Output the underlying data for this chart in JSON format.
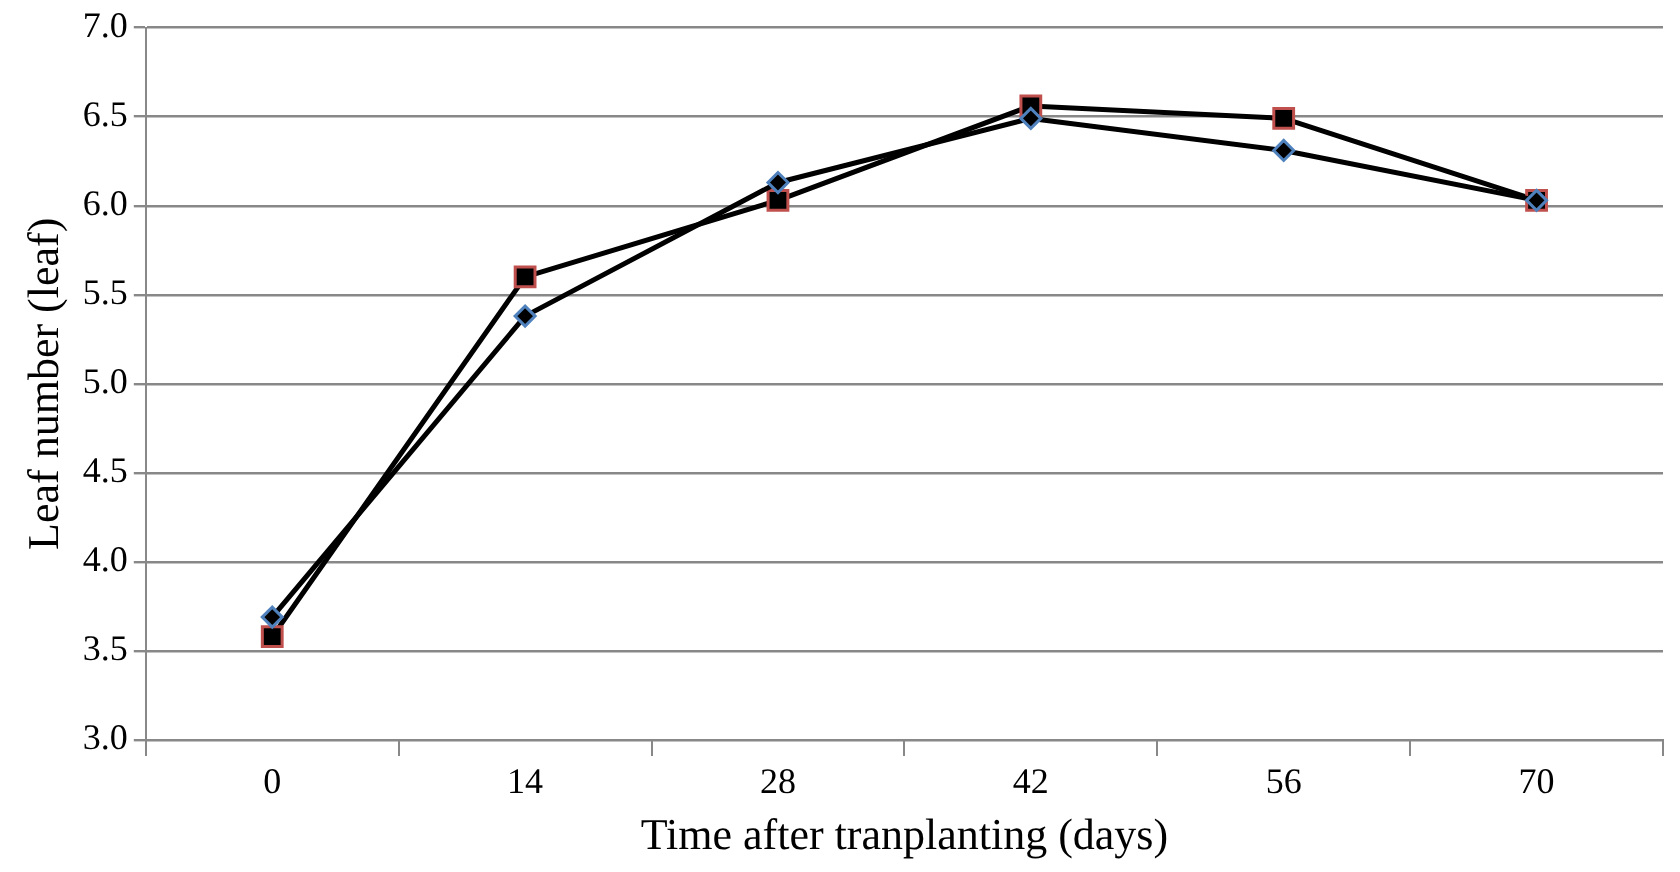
{
  "chart_data": {
    "type": "line",
    "xlabel": "Time after tranplanting (days)",
    "ylabel": "Leaf number (leaf)",
    "categories": [
      "0",
      "14",
      "28",
      "42",
      "56",
      "70"
    ],
    "series": [
      {
        "color": "#000000",
        "marker": "diamond",
        "values": [
          3.69,
          5.38,
          6.13,
          6.49,
          6.31,
          6.03
        ]
      },
      {
        "color": "#000000",
        "marker": "square",
        "values": [
          3.58,
          5.6,
          6.03,
          6.56,
          6.49,
          6.03
        ]
      }
    ],
    "ylim": [
      3.0,
      7.0
    ],
    "yticks": [
      {
        "value": 3,
        "label": "3.0"
      },
      {
        "value": 3.5,
        "label": "3.5"
      },
      {
        "value": 4,
        "label": "4.0"
      },
      {
        "value": 4.5,
        "label": "4.5"
      },
      {
        "value": 5,
        "label": "5.0"
      },
      {
        "value": 5.5,
        "label": "5.5"
      },
      {
        "value": 6,
        "label": "6.0"
      },
      {
        "value": 6.5,
        "label": "6.5"
      },
      {
        "value": 7,
        "label": "7.0"
      }
    ],
    "grid": "y",
    "legend": false,
    "line_style": "solid"
  }
}
